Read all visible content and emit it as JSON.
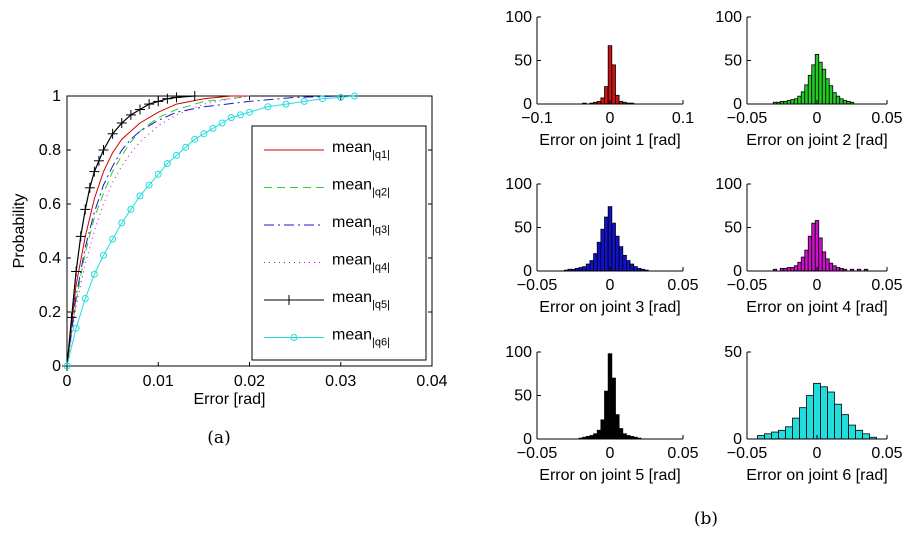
{
  "chart_data": [
    {
      "type": "line",
      "caption": "(a)",
      "xlabel": "Error [rad]",
      "ylabel": "Probability",
      "xlim": [
        0,
        0.04
      ],
      "ylim": [
        0,
        1
      ],
      "x_ticks": [
        "0",
        "0.01",
        "0.02",
        "0.03",
        "0.04"
      ],
      "y_ticks": [
        "0",
        "0.2",
        "0.4",
        "0.6",
        "0.8",
        "1"
      ],
      "legend_position": "right",
      "series": [
        {
          "name_base": "mean",
          "name_sub": "|q1|",
          "color": "#d40000",
          "dash": "solid",
          "marker": "none",
          "x": [
            0,
            0.001,
            0.002,
            0.003,
            0.004,
            0.005,
            0.006,
            0.007,
            0.008,
            0.01,
            0.012,
            0.015,
            0.018,
            0.02
          ],
          "y": [
            0,
            0.3,
            0.48,
            0.62,
            0.72,
            0.79,
            0.84,
            0.87,
            0.9,
            0.94,
            0.97,
            0.99,
            1.0,
            1.0
          ]
        },
        {
          "name_base": "mean",
          "name_sub": "|q2|",
          "color": "#33cc33",
          "dash": "8 5",
          "marker": "none",
          "x": [
            0,
            0.001,
            0.002,
            0.003,
            0.004,
            0.005,
            0.006,
            0.007,
            0.008,
            0.01,
            0.012,
            0.015,
            0.018,
            0.02
          ],
          "y": [
            0,
            0.24,
            0.42,
            0.55,
            0.64,
            0.72,
            0.78,
            0.83,
            0.87,
            0.92,
            0.95,
            0.98,
            0.99,
            1.0
          ]
        },
        {
          "name_base": "mean",
          "name_sub": "|q3|",
          "color": "#1a1acc",
          "dash": "10 4 2 4",
          "marker": "none",
          "x": [
            0,
            0.001,
            0.002,
            0.003,
            0.004,
            0.005,
            0.006,
            0.007,
            0.008,
            0.01,
            0.012,
            0.015,
            0.02,
            0.025,
            0.03
          ],
          "y": [
            0,
            0.26,
            0.44,
            0.57,
            0.67,
            0.74,
            0.8,
            0.84,
            0.87,
            0.91,
            0.94,
            0.96,
            0.98,
            0.995,
            1.0
          ]
        },
        {
          "name_base": "mean",
          "name_sub": "|q4|",
          "color": "#cc00cc",
          "dash": "1 4",
          "marker": "none",
          "x": [
            0,
            0.001,
            0.002,
            0.003,
            0.004,
            0.005,
            0.006,
            0.007,
            0.008,
            0.01,
            0.012,
            0.015,
            0.018,
            0.02
          ],
          "y": [
            0,
            0.22,
            0.38,
            0.5,
            0.6,
            0.68,
            0.74,
            0.79,
            0.83,
            0.89,
            0.93,
            0.97,
            0.99,
            1.0
          ]
        },
        {
          "name_base": "mean",
          "name_sub": "|q5|",
          "color": "#000000",
          "dash": "solid",
          "marker": "plus",
          "x": [
            0,
            0.0005,
            0.001,
            0.0015,
            0.002,
            0.0025,
            0.003,
            0.0035,
            0.004,
            0.005,
            0.006,
            0.007,
            0.008,
            0.009,
            0.01,
            0.011,
            0.012,
            0.014
          ],
          "y": [
            0,
            0.18,
            0.35,
            0.48,
            0.58,
            0.66,
            0.72,
            0.76,
            0.8,
            0.86,
            0.9,
            0.93,
            0.95,
            0.97,
            0.98,
            0.99,
            0.995,
            1.0
          ]
        },
        {
          "name_base": "mean",
          "name_sub": "|q6|",
          "color": "#22dddd",
          "dash": "solid",
          "marker": "circle",
          "x": [
            0,
            0.001,
            0.002,
            0.003,
            0.004,
            0.005,
            0.006,
            0.007,
            0.008,
            0.009,
            0.01,
            0.011,
            0.012,
            0.013,
            0.014,
            0.015,
            0.016,
            0.017,
            0.018,
            0.019,
            0.02,
            0.022,
            0.024,
            0.026,
            0.028,
            0.03,
            0.0315
          ],
          "y": [
            0,
            0.14,
            0.25,
            0.34,
            0.41,
            0.47,
            0.53,
            0.58,
            0.63,
            0.67,
            0.71,
            0.75,
            0.78,
            0.81,
            0.84,
            0.86,
            0.88,
            0.9,
            0.92,
            0.93,
            0.94,
            0.96,
            0.97,
            0.98,
            0.99,
            0.995,
            1.0
          ]
        }
      ]
    },
    {
      "type": "bar",
      "xlabel": "Error on joint 1 [rad]",
      "color": "#cc1111",
      "xlim": [
        -0.1,
        0.1
      ],
      "ylim": [
        0,
        100
      ],
      "x_ticks": [
        "−0.1",
        "0",
        "0.1"
      ],
      "y_ticks": [
        "0",
        "50",
        "100"
      ],
      "bin_centers": [
        -0.035,
        -0.025,
        -0.02,
        -0.015,
        -0.01,
        -0.005,
        0,
        0.005,
        0.01,
        0.015,
        0.02,
        0.025,
        0.03
      ],
      "values": [
        1,
        1,
        2,
        3,
        7,
        20,
        67,
        45,
        10,
        3,
        2,
        1,
        1
      ]
    },
    {
      "type": "bar",
      "xlabel": "Error on joint 2 [rad]",
      "color": "#22cc22",
      "xlim": [
        -0.05,
        0.05
      ],
      "ylim": [
        0,
        100
      ],
      "x_ticks": [
        "−0.05",
        "0",
        "0.05"
      ],
      "y_ticks": [
        "0",
        "50",
        "100"
      ],
      "bin_centers": [
        -0.03,
        -0.0275,
        -0.025,
        -0.0225,
        -0.02,
        -0.0175,
        -0.015,
        -0.0125,
        -0.01,
        -0.0075,
        -0.005,
        -0.0025,
        0,
        0.0025,
        0.005,
        0.0075,
        0.01,
        0.0125,
        0.015,
        0.0175,
        0.02,
        0.0225,
        0.025
      ],
      "values": [
        2,
        2,
        3,
        3,
        4,
        5,
        6,
        9,
        14,
        22,
        33,
        45,
        57,
        48,
        40,
        29,
        21,
        13,
        9,
        6,
        4,
        3,
        2
      ]
    },
    {
      "type": "bar",
      "xlabel": "Error on joint 3 [rad]",
      "color": "#1111cc",
      "xlim": [
        -0.05,
        0.05
      ],
      "ylim": [
        0,
        100
      ],
      "x_ticks": [
        "−0.05",
        "0",
        "0.05"
      ],
      "y_ticks": [
        "0",
        "50",
        "100"
      ],
      "bin_centers": [
        -0.03,
        -0.0275,
        -0.025,
        -0.0225,
        -0.02,
        -0.0175,
        -0.015,
        -0.0125,
        -0.01,
        -0.0075,
        -0.005,
        -0.0025,
        0,
        0.0025,
        0.005,
        0.0075,
        0.01,
        0.0125,
        0.015,
        0.0175,
        0.02,
        0.0225,
        0.025
      ],
      "values": [
        1,
        2,
        2,
        3,
        4,
        5,
        8,
        12,
        20,
        33,
        48,
        62,
        74,
        55,
        40,
        28,
        18,
        12,
        8,
        5,
        3,
        2,
        1
      ]
    },
    {
      "type": "bar",
      "xlabel": "Error on joint 4 [rad]",
      "color": "#cc11cc",
      "xlim": [
        -0.05,
        0.05
      ],
      "ylim": [
        0,
        100
      ],
      "x_ticks": [
        "−0.05",
        "0",
        "0.05"
      ],
      "y_ticks": [
        "0",
        "50",
        "100"
      ],
      "bin_centers": [
        -0.03,
        -0.025,
        -0.0225,
        -0.02,
        -0.0175,
        -0.015,
        -0.0125,
        -0.01,
        -0.0075,
        -0.005,
        -0.0025,
        0,
        0.0025,
        0.005,
        0.0075,
        0.01,
        0.0125,
        0.015,
        0.0175,
        0.02,
        0.025,
        0.03,
        0.035
      ],
      "values": [
        2,
        3,
        3,
        4,
        4,
        6,
        10,
        16,
        24,
        40,
        55,
        58,
        38,
        22,
        14,
        9,
        6,
        4,
        3,
        2,
        2,
        2,
        2
      ]
    },
    {
      "type": "bar",
      "xlabel": "Error on joint 5 [rad]",
      "color": "#000000",
      "xlim": [
        -0.05,
        0.05
      ],
      "ylim": [
        0,
        100
      ],
      "x_ticks": [
        "−0.05",
        "0",
        "0.05"
      ],
      "y_ticks": [
        "0",
        "50",
        "100"
      ],
      "bin_centers": [
        -0.02,
        -0.0175,
        -0.015,
        -0.0125,
        -0.01,
        -0.0075,
        -0.005,
        -0.0025,
        0,
        0.0025,
        0.005,
        0.0075,
        0.01,
        0.0125,
        0.015,
        0.0175,
        0.02
      ],
      "values": [
        1,
        2,
        3,
        4,
        6,
        10,
        22,
        55,
        98,
        70,
        28,
        12,
        6,
        4,
        3,
        2,
        1
      ]
    },
    {
      "type": "bar",
      "xlabel": "Error on joint 6 [rad]",
      "color": "#22dddd",
      "xlim": [
        -0.05,
        0.05
      ],
      "ylim": [
        0,
        50
      ],
      "x_ticks": [
        "−0.05",
        "0",
        "0.05"
      ],
      "y_ticks": [
        "0",
        "50"
      ],
      "bin_centers": [
        -0.04,
        -0.035,
        -0.03,
        -0.025,
        -0.02,
        -0.015,
        -0.01,
        -0.005,
        0,
        0.005,
        0.01,
        0.015,
        0.02,
        0.025,
        0.03,
        0.035,
        0.04
      ],
      "values": [
        2,
        3,
        4,
        5,
        7,
        12,
        18,
        25,
        32,
        30,
        27,
        20,
        14,
        8,
        5,
        3,
        1
      ]
    }
  ],
  "captions": {
    "a": "(a)",
    "b": "(b)"
  }
}
